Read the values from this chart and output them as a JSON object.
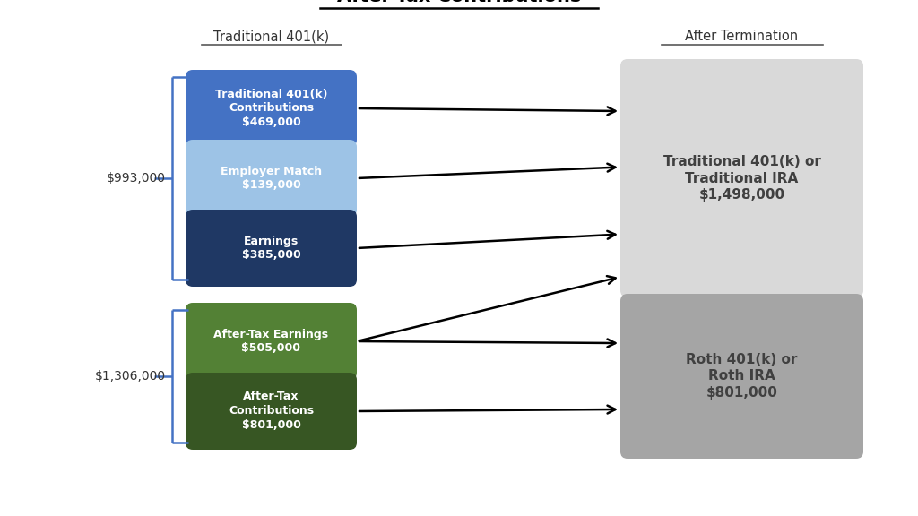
{
  "title": "After-Tax Contributions",
  "col1_header": "Traditional 401(k)",
  "col2_header": "After Termination",
  "background_color": "#ffffff",
  "boxes_top": [
    {
      "label": "Traditional 401(k)\nContributions\n$469,000",
      "color": "#4472C4",
      "text_color": "#ffffff"
    },
    {
      "label": "Employer Match\n$139,000",
      "color": "#9DC3E6",
      "text_color": "#ffffff"
    },
    {
      "label": "Earnings\n$385,000",
      "color": "#1F3864",
      "text_color": "#ffffff"
    }
  ],
  "boxes_bottom": [
    {
      "label": "After-Tax Earnings\n$505,000",
      "color": "#538135",
      "text_color": "#ffffff"
    },
    {
      "label": "After-Tax\nContributions\n$801,000",
      "color": "#375623",
      "text_color": "#ffffff"
    }
  ],
  "right_box_top": {
    "label": "Traditional 401(k) or\nTraditional IRA\n$1,498,000",
    "color": "#D9D9D9",
    "text_color": "#404040"
  },
  "right_box_bottom": {
    "label": "Roth 401(k) or\nRoth IRA\n$801,000",
    "color": "#A5A5A5",
    "text_color": "#404040"
  },
  "label_top": "$993,000",
  "label_bottom": "$1,306,000",
  "arrow_color": "#000000",
  "bracket_color": "#4472C4",
  "header_underline_color": "#595959",
  "title_underline_color": "#000000"
}
